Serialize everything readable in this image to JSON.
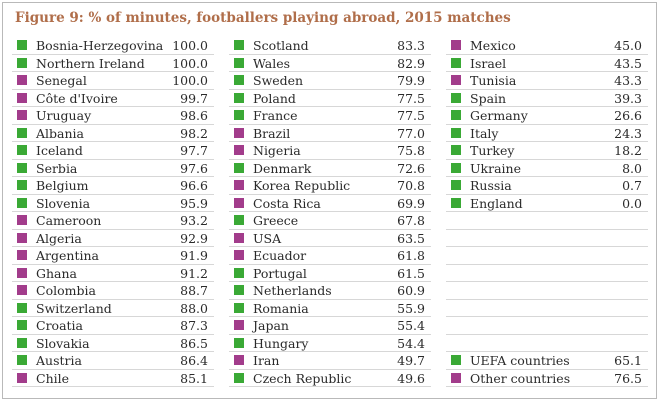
{
  "title": "Figure 9: % of minutes, footballers playing abroad, 2015 matches",
  "colors": {
    "uefa": "#3aa935",
    "other": "#a23c8b",
    "title": "#b06e4a"
  },
  "chart_data": {
    "type": "table",
    "title": "Figure 9: % of minutes, footballers playing abroad, 2015 matches",
    "columns": [
      [
        {
          "name": "Bosnia-Herzegovina",
          "value": "100.0",
          "group": "uefa"
        },
        {
          "name": "Northern Ireland",
          "value": "100.0",
          "group": "uefa"
        },
        {
          "name": "Senegal",
          "value": "100.0",
          "group": "other"
        },
        {
          "name": "Côte d'Ivoire",
          "value": "99.7",
          "group": "other"
        },
        {
          "name": "Uruguay",
          "value": "98.6",
          "group": "other"
        },
        {
          "name": "Albania",
          "value": "98.2",
          "group": "uefa"
        },
        {
          "name": "Iceland",
          "value": "97.7",
          "group": "uefa"
        },
        {
          "name": "Serbia",
          "value": "97.6",
          "group": "uefa"
        },
        {
          "name": "Belgium",
          "value": "96.6",
          "group": "uefa"
        },
        {
          "name": "Slovenia",
          "value": "95.9",
          "group": "uefa"
        },
        {
          "name": "Cameroon",
          "value": "93.2",
          "group": "other"
        },
        {
          "name": "Algeria",
          "value": "92.9",
          "group": "other"
        },
        {
          "name": "Argentina",
          "value": "91.9",
          "group": "other"
        },
        {
          "name": "Ghana",
          "value": "91.2",
          "group": "other"
        },
        {
          "name": "Colombia",
          "value": "88.7",
          "group": "other"
        },
        {
          "name": "Switzerland",
          "value": "88.0",
          "group": "uefa"
        },
        {
          "name": "Croatia",
          "value": "87.3",
          "group": "uefa"
        },
        {
          "name": "Slovakia",
          "value": "86.5",
          "group": "uefa"
        },
        {
          "name": "Austria",
          "value": "86.4",
          "group": "uefa"
        },
        {
          "name": "Chile",
          "value": "85.1",
          "group": "other"
        }
      ],
      [
        {
          "name": "Scotland",
          "value": "83.3",
          "group": "uefa"
        },
        {
          "name": "Wales",
          "value": "82.9",
          "group": "uefa"
        },
        {
          "name": "Sweden",
          "value": "79.9",
          "group": "uefa"
        },
        {
          "name": "Poland",
          "value": "77.5",
          "group": "uefa"
        },
        {
          "name": "France",
          "value": "77.5",
          "group": "uefa"
        },
        {
          "name": "Brazil",
          "value": "77.0",
          "group": "other"
        },
        {
          "name": "Nigeria",
          "value": "75.8",
          "group": "other"
        },
        {
          "name": "Denmark",
          "value": "72.6",
          "group": "uefa"
        },
        {
          "name": "Korea Republic",
          "value": "70.8",
          "group": "other"
        },
        {
          "name": "Costa Rica",
          "value": "69.9",
          "group": "other"
        },
        {
          "name": "Greece",
          "value": "67.8",
          "group": "uefa"
        },
        {
          "name": "USA",
          "value": "63.5",
          "group": "other"
        },
        {
          "name": "Ecuador",
          "value": "61.8",
          "group": "other"
        },
        {
          "name": "Portugal",
          "value": "61.5",
          "group": "uefa"
        },
        {
          "name": "Netherlands",
          "value": "60.9",
          "group": "uefa"
        },
        {
          "name": "Romania",
          "value": "55.9",
          "group": "uefa"
        },
        {
          "name": "Japan",
          "value": "55.4",
          "group": "other"
        },
        {
          "name": "Hungary",
          "value": "54.4",
          "group": "uefa"
        },
        {
          "name": "Iran",
          "value": "49.7",
          "group": "other"
        },
        {
          "name": "Czech Republic",
          "value": "49.6",
          "group": "uefa"
        }
      ],
      [
        {
          "name": "Mexico",
          "value": "45.0",
          "group": "other"
        },
        {
          "name": "Israel",
          "value": "43.5",
          "group": "uefa"
        },
        {
          "name": "Tunisia",
          "value": "43.3",
          "group": "other"
        },
        {
          "name": "Spain",
          "value": "39.3",
          "group": "uefa"
        },
        {
          "name": "Germany",
          "value": "26.6",
          "group": "uefa"
        },
        {
          "name": "Italy",
          "value": "24.3",
          "group": "uefa"
        },
        {
          "name": "Turkey",
          "value": "18.2",
          "group": "uefa"
        },
        {
          "name": "Ukraine",
          "value": "8.0",
          "group": "uefa"
        },
        {
          "name": "Russia",
          "value": "0.7",
          "group": "uefa"
        },
        {
          "name": "England",
          "value": "0.0",
          "group": "uefa"
        },
        {
          "name": "",
          "value": "",
          "group": ""
        },
        {
          "name": "",
          "value": "",
          "group": ""
        },
        {
          "name": "",
          "value": "",
          "group": ""
        },
        {
          "name": "",
          "value": "",
          "group": ""
        },
        {
          "name": "",
          "value": "",
          "group": ""
        },
        {
          "name": "",
          "value": "",
          "group": ""
        },
        {
          "name": "",
          "value": "",
          "group": ""
        },
        {
          "name": "",
          "value": "",
          "group": ""
        },
        {
          "name": "UEFA countries",
          "value": "65.1",
          "group": "uefa"
        },
        {
          "name": "Other countries",
          "value": "76.5",
          "group": "other"
        }
      ]
    ]
  }
}
